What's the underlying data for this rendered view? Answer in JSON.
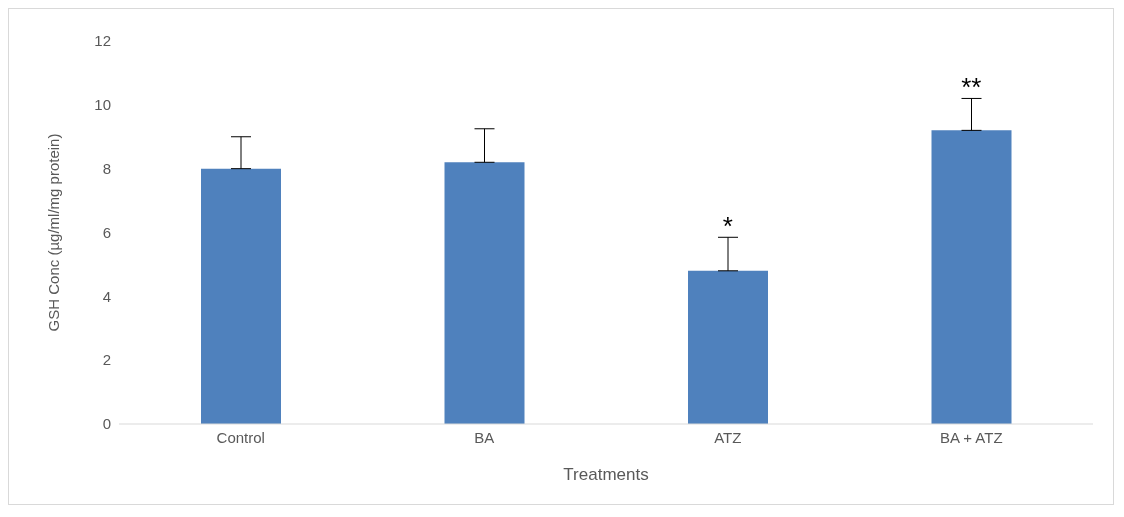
{
  "chart_data": {
    "type": "bar",
    "xlabel": "Treatments",
    "ylabel": "GSH Conc (µg/ml/mg protein)",
    "categories": [
      "Control",
      "BA",
      "ATZ",
      "BA + ATZ"
    ],
    "values": [
      8.0,
      8.2,
      4.8,
      9.2
    ],
    "errors": [
      [
        8.0,
        9.0
      ],
      [
        8.2,
        9.25
      ],
      [
        4.8,
        5.85
      ],
      [
        9.2,
        10.2
      ]
    ],
    "color": "#4f81bd",
    "ylim": [
      0,
      12
    ],
    "yticks": [
      0,
      2,
      4,
      6,
      8,
      10,
      12
    ],
    "grid": false,
    "legend": false,
    "annotations": [
      {
        "text": "*",
        "x": "ATZ",
        "y": 5.85
      },
      {
        "text": "**",
        "x": "BA + ATZ",
        "y": 10.2
      }
    ]
  }
}
